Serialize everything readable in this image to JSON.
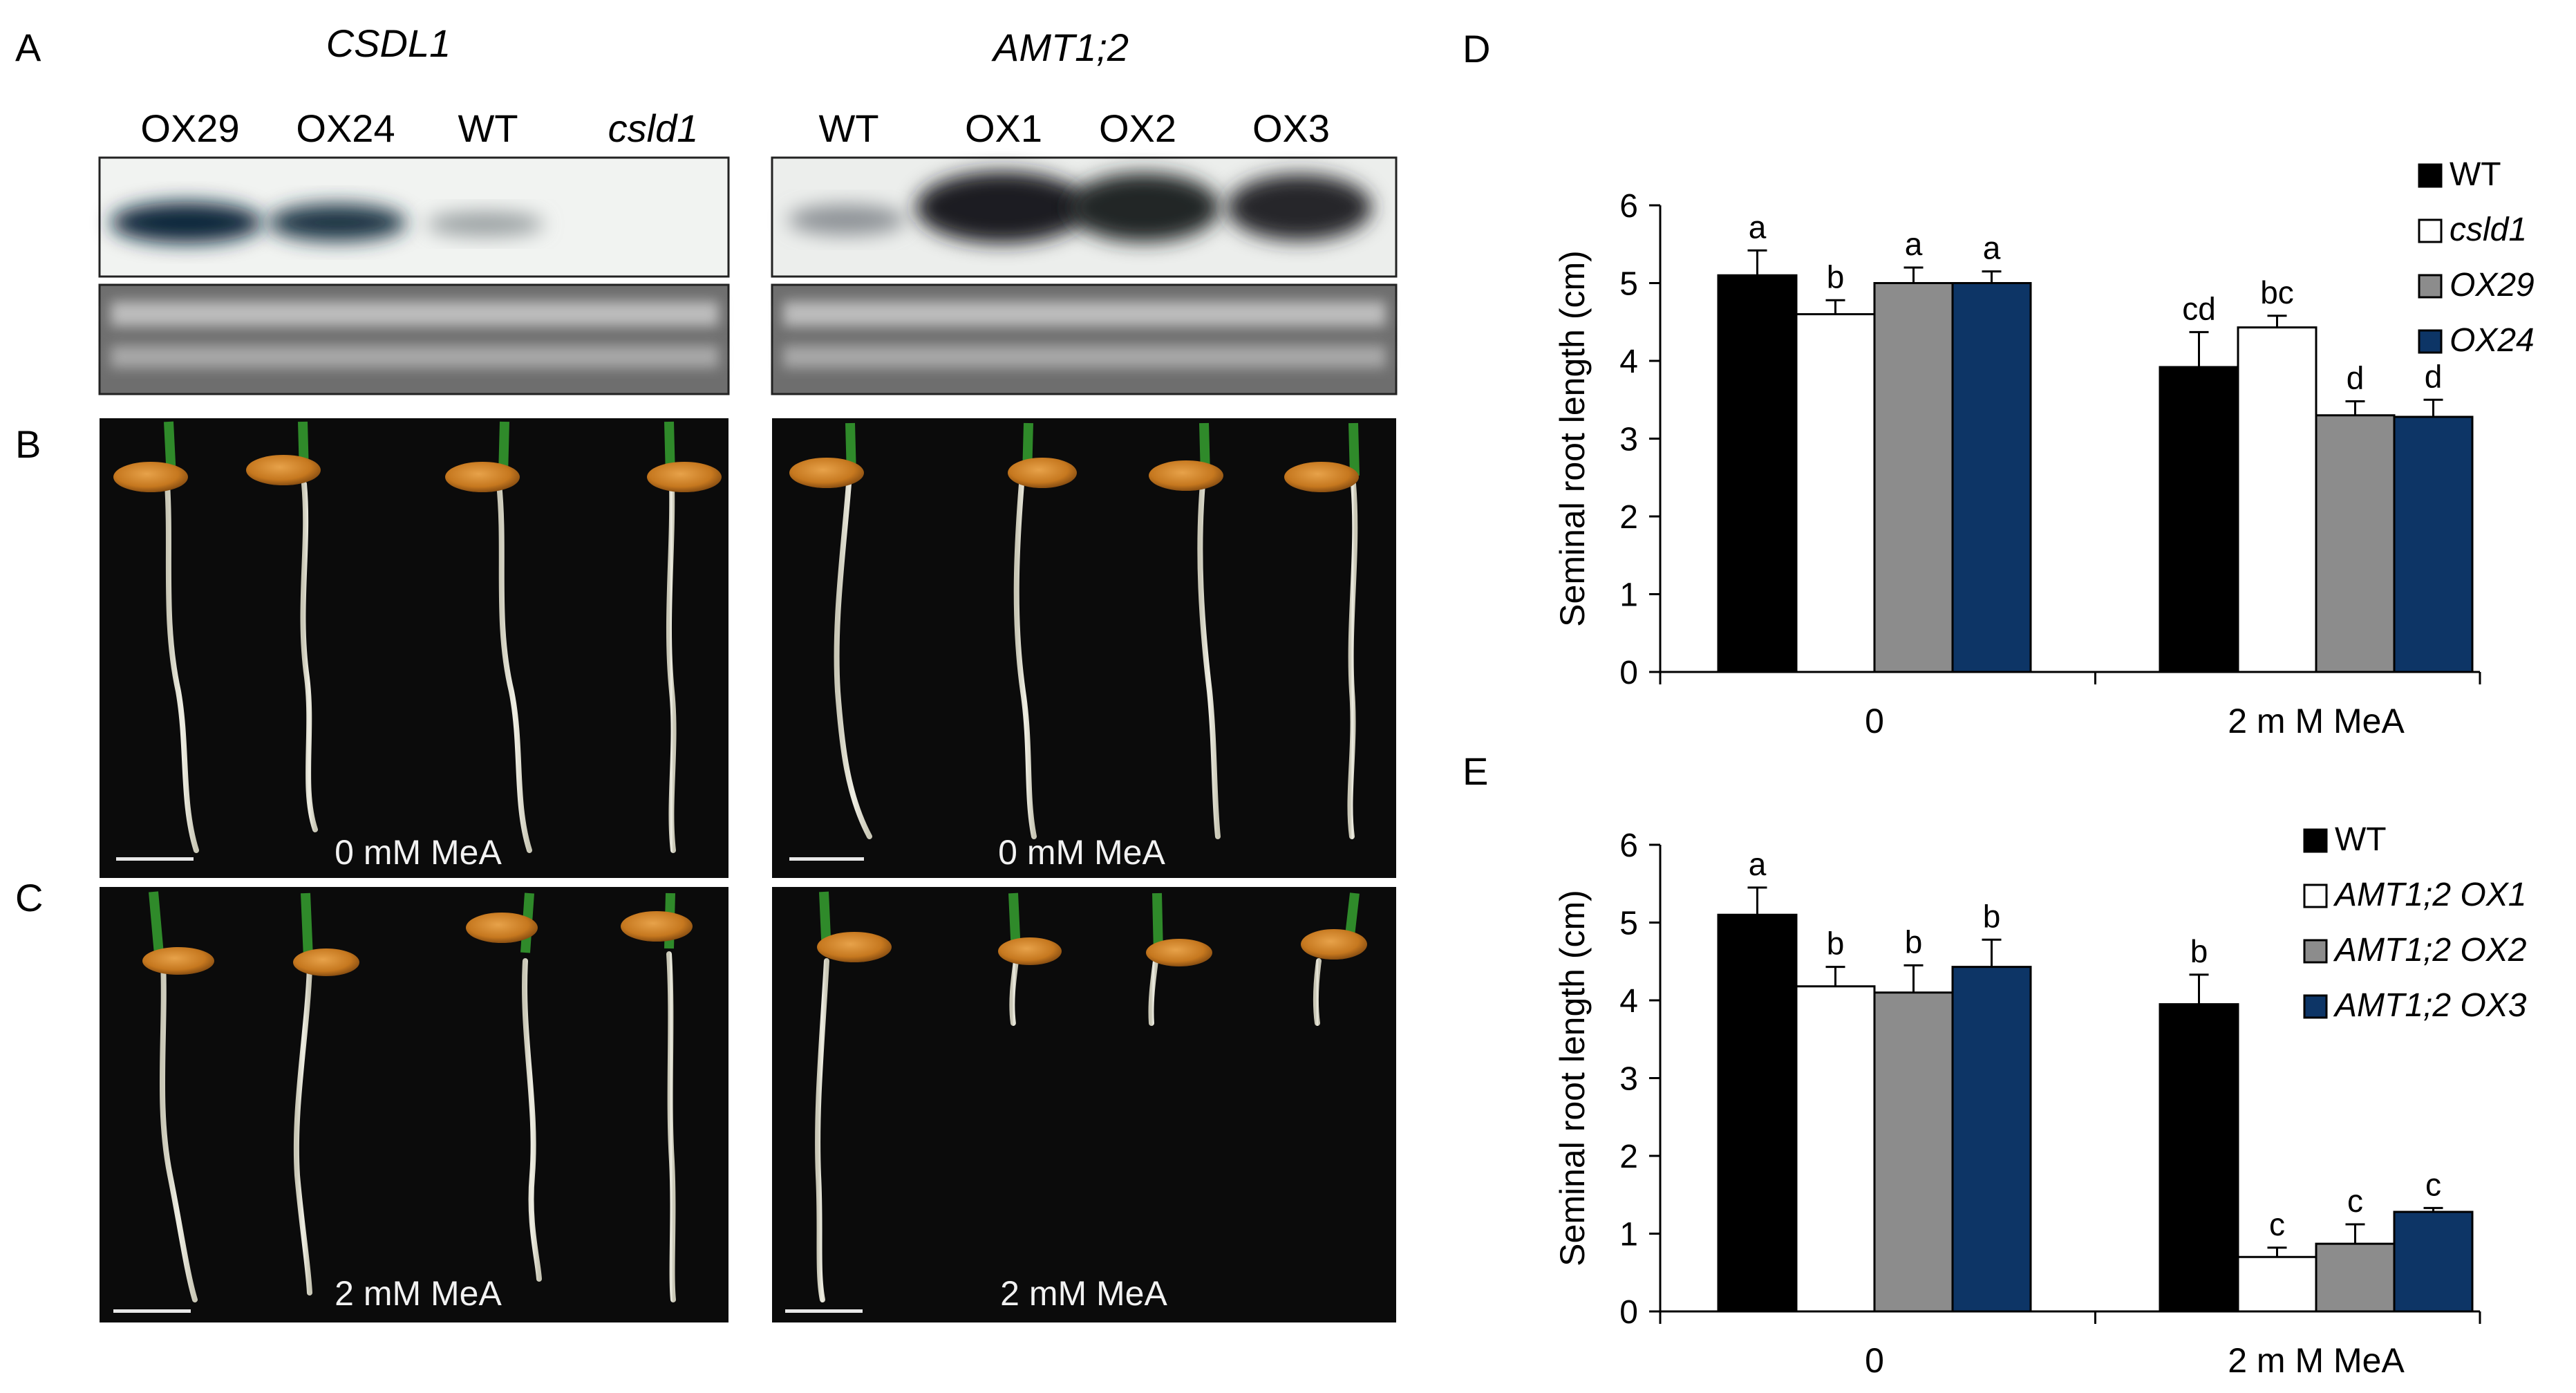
{
  "panels": {
    "A": {
      "letter": "A",
      "blot_left": {
        "gene": "CSDL1",
        "lanes": [
          "OX29",
          "OX24",
          "WT",
          "csld1"
        ]
      },
      "blot_right": {
        "gene": "AMT1;2",
        "lanes": [
          "WT",
          "OX1",
          "OX2",
          "OX3"
        ]
      }
    },
    "B": {
      "letter": "B",
      "left_condition": "0 mM MeA",
      "right_condition": "0 mM MeA"
    },
    "C": {
      "letter": "C",
      "left_condition": "2 mM MeA",
      "right_condition": "2 mM MeA"
    },
    "D": {
      "letter": "D"
    },
    "E": {
      "letter": "E"
    }
  },
  "chart_data": [
    {
      "panel": "D",
      "type": "bar",
      "ylabel": "Seminal root length (cm)",
      "xlabel": "",
      "ylim": [
        0,
        6
      ],
      "yticks": [
        "0",
        "1",
        "2",
        "3",
        "4",
        "5",
        "6"
      ],
      "categories": [
        "0",
        "2 m M MeA"
      ],
      "legend_position": "top-right",
      "series": [
        {
          "name": "WT",
          "color": "#000000",
          "values": [
            5.1,
            3.92
          ],
          "errors": [
            0.32,
            0.45
          ],
          "letters": [
            "a",
            "cd"
          ]
        },
        {
          "name": "csld1",
          "color": "#ffffff",
          "values": [
            4.6,
            4.43
          ],
          "errors": [
            0.18,
            0.15
          ],
          "letters": [
            "b",
            "bc"
          ]
        },
        {
          "name": "OX29",
          "color": "#8c8c8c",
          "values": [
            5.0,
            3.3
          ],
          "errors": [
            0.2,
            0.18
          ],
          "letters": [
            "a",
            "d"
          ]
        },
        {
          "name": "OX24",
          "color": "#0d3566",
          "values": [
            5.0,
            3.28
          ],
          "errors": [
            0.15,
            0.22
          ],
          "letters": [
            "a",
            "d"
          ]
        }
      ]
    },
    {
      "panel": "E",
      "type": "bar",
      "ylabel": "Seminal root length (cm)",
      "xlabel": "",
      "ylim": [
        0,
        6
      ],
      "yticks": [
        "0",
        "1",
        "2",
        "3",
        "4",
        "5",
        "6"
      ],
      "categories": [
        "0",
        "2 m M MeA"
      ],
      "legend_position": "top-right",
      "series": [
        {
          "name": "WT",
          "color": "#000000",
          "values": [
            5.1,
            3.95
          ],
          "errors": [
            0.35,
            0.38
          ],
          "letters": [
            "a",
            "b"
          ]
        },
        {
          "name": "AMT1;2 OX1",
          "color": "#ffffff",
          "values": [
            4.18,
            0.7
          ],
          "errors": [
            0.25,
            0.12
          ],
          "letters": [
            "b",
            "c"
          ]
        },
        {
          "name": "AMT1;2 OX2",
          "color": "#8c8c8c",
          "values": [
            4.1,
            0.87
          ],
          "errors": [
            0.35,
            0.25
          ],
          "letters": [
            "b",
            "c"
          ]
        },
        {
          "name": "AMT1;2 OX3",
          "color": "#0d3566",
          "values": [
            4.43,
            1.28
          ],
          "errors": [
            0.35,
            0.05
          ],
          "letters": [
            "b",
            "c"
          ]
        }
      ]
    }
  ]
}
